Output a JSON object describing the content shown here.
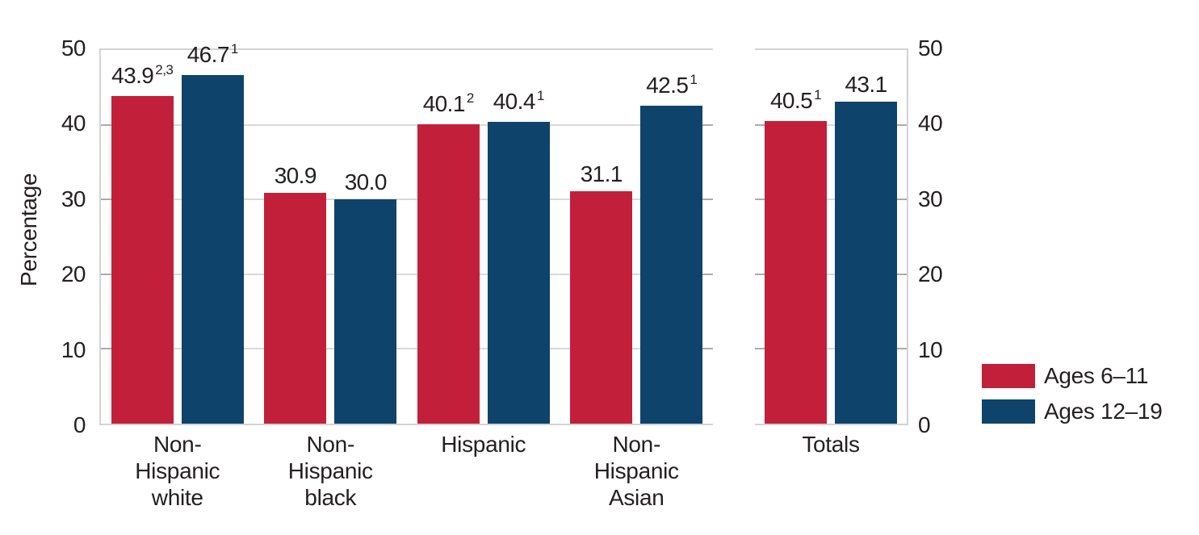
{
  "chart_data": {
    "type": "bar",
    "title": "",
    "xlabel": "",
    "ylabel": "Percentage",
    "ylim": [
      0,
      50
    ],
    "yticks": [
      0,
      10,
      20,
      30,
      40,
      50
    ],
    "grid": true,
    "legend_position": "right",
    "series_names": [
      "Ages 6–11",
      "Ages 12–19"
    ],
    "series_colors": [
      "#C2203A",
      "#0E436B"
    ],
    "panels": [
      {
        "name": "race-ethnicity-groups",
        "categories": [
          "Non-\nHispanic\nwhite",
          "Non-\nHispanic\nblack",
          "Hispanic",
          "Non-\nHispanic\nAsian"
        ],
        "groups": [
          {
            "category": "Non-\nHispanic\nwhite",
            "bars": [
              {
                "series": "Ages 6–11",
                "value": 43.9,
                "label": "43.9",
                "superscript": "2,3"
              },
              {
                "series": "Ages 12–19",
                "value": 46.7,
                "label": "46.7",
                "superscript": "1"
              }
            ]
          },
          {
            "category": "Non-\nHispanic\nblack",
            "bars": [
              {
                "series": "Ages 6–11",
                "value": 30.9,
                "label": "30.9",
                "superscript": ""
              },
              {
                "series": "Ages 12–19",
                "value": 30.0,
                "label": "30.0",
                "superscript": ""
              }
            ]
          },
          {
            "category": "Hispanic",
            "bars": [
              {
                "series": "Ages 6–11",
                "value": 40.1,
                "label": "40.1",
                "superscript": "2"
              },
              {
                "series": "Ages 12–19",
                "value": 40.4,
                "label": "40.4",
                "superscript": "1"
              }
            ]
          },
          {
            "category": "Non-\nHispanic\nAsian",
            "bars": [
              {
                "series": "Ages 6–11",
                "value": 31.1,
                "label": "31.1",
                "superscript": ""
              },
              {
                "series": "Ages 12–19",
                "value": 42.5,
                "label": "42.5",
                "superscript": "1"
              }
            ]
          }
        ]
      },
      {
        "name": "totals",
        "categories": [
          "Totals"
        ],
        "groups": [
          {
            "category": "Totals",
            "bars": [
              {
                "series": "Ages 6–11",
                "value": 40.5,
                "label": "40.5",
                "superscript": "1"
              },
              {
                "series": "Ages 12–19",
                "value": 43.1,
                "label": "43.1",
                "superscript": ""
              }
            ]
          }
        ]
      }
    ]
  },
  "colors": {
    "accent_red": "#C2203A",
    "accent_blue": "#0E436B",
    "gridline": "#D9D9D9",
    "axis_border": "#D3D3D3",
    "tick": "#ABABAB",
    "text": "#231F20",
    "background": "#FFFFFF"
  }
}
